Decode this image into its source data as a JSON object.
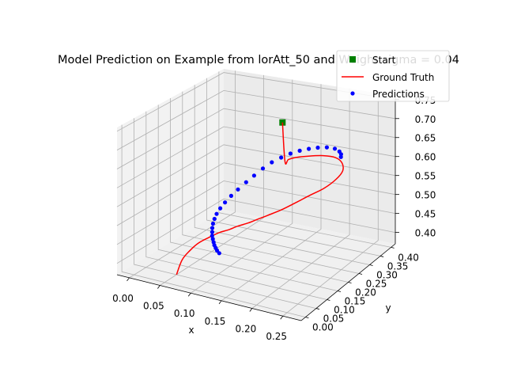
{
  "chart_data": {
    "type": "line3d-scatter",
    "title": "Model Prediction on Example from lorAtt_50 and Weight sigma = 0.04",
    "xlabel": "x",
    "ylabel": "y",
    "zlabel": "",
    "xlim": [
      -0.02,
      0.28
    ],
    "ylim": [
      -0.02,
      0.42
    ],
    "zlim": [
      0.37,
      0.76
    ],
    "xticks": [
      "0.00",
      "0.05",
      "0.10",
      "0.15",
      "0.20",
      "0.25"
    ],
    "yticks": [
      "0.00",
      "0.05",
      "0.10",
      "0.15",
      "0.20",
      "0.25",
      "0.30",
      "0.35",
      "0.40"
    ],
    "zticks": [
      "0.40",
      "0.45",
      "0.50",
      "0.55",
      "0.60",
      "0.65",
      "0.70",
      "0.75"
    ],
    "grid": true,
    "legend_position": "top-right",
    "legend": [
      {
        "label": "Start",
        "marker": "square",
        "color": "#008000"
      },
      {
        "label": "Ground Truth",
        "marker": "line",
        "color": "#ff0000"
      },
      {
        "label": "Predictions",
        "marker": "dot",
        "color": "#0000ff"
      }
    ],
    "series": [
      {
        "name": "Start",
        "color": "#008000",
        "points": [
          {
            "x": 0.15,
            "y": 0.25,
            "z": 0.72
          }
        ]
      },
      {
        "name": "Ground Truth",
        "color": "#ff0000",
        "points": [
          {
            "x": 0.05,
            "y": 0.05,
            "z": 0.37
          },
          {
            "x": 0.055,
            "y": 0.061,
            "z": 0.406
          },
          {
            "x": 0.065,
            "y": 0.069,
            "z": 0.431
          },
          {
            "x": 0.076,
            "y": 0.076,
            "z": 0.451
          },
          {
            "x": 0.091,
            "y": 0.084,
            "z": 0.468
          },
          {
            "x": 0.104,
            "y": 0.093,
            "z": 0.481
          },
          {
            "x": 0.118,
            "y": 0.098,
            "z": 0.491
          },
          {
            "x": 0.13,
            "y": 0.106,
            "z": 0.501
          },
          {
            "x": 0.144,
            "y": 0.115,
            "z": 0.51
          },
          {
            "x": 0.156,
            "y": 0.122,
            "z": 0.52
          },
          {
            "x": 0.171,
            "y": 0.13,
            "z": 0.532
          },
          {
            "x": 0.19,
            "y": 0.139,
            "z": 0.548
          },
          {
            "x": 0.21,
            "y": 0.148,
            "z": 0.568
          },
          {
            "x": 0.23,
            "y": 0.161,
            "z": 0.588
          },
          {
            "x": 0.249,
            "y": 0.173,
            "z": 0.606
          },
          {
            "x": 0.263,
            "y": 0.19,
            "z": 0.626
          },
          {
            "x": 0.267,
            "y": 0.21,
            "z": 0.641
          },
          {
            "x": 0.258,
            "y": 0.231,
            "z": 0.651
          },
          {
            "x": 0.24,
            "y": 0.249,
            "z": 0.653
          },
          {
            "x": 0.216,
            "y": 0.258,
            "z": 0.648
          },
          {
            "x": 0.191,
            "y": 0.259,
            "z": 0.64
          },
          {
            "x": 0.17,
            "y": 0.255,
            "z": 0.632
          },
          {
            "x": 0.16,
            "y": 0.25,
            "z": 0.626
          },
          {
            "x": 0.155,
            "y": 0.248,
            "z": 0.62
          },
          {
            "x": 0.15,
            "y": 0.25,
            "z": 0.72
          }
        ]
      },
      {
        "name": "Predictions",
        "color": "#0000ff",
        "points": [
          {
            "x": 0.109,
            "y": 0.08,
            "z": 0.435
          },
          {
            "x": 0.105,
            "y": 0.081,
            "z": 0.44
          },
          {
            "x": 0.102,
            "y": 0.083,
            "z": 0.445
          },
          {
            "x": 0.099,
            "y": 0.085,
            "z": 0.45
          },
          {
            "x": 0.097,
            "y": 0.087,
            "z": 0.456
          },
          {
            "x": 0.095,
            "y": 0.089,
            "z": 0.463
          },
          {
            "x": 0.093,
            "y": 0.091,
            "z": 0.47
          },
          {
            "x": 0.092,
            "y": 0.094,
            "z": 0.478
          },
          {
            "x": 0.091,
            "y": 0.097,
            "z": 0.487
          },
          {
            "x": 0.091,
            "y": 0.1,
            "z": 0.497
          },
          {
            "x": 0.092,
            "y": 0.104,
            "z": 0.508
          },
          {
            "x": 0.094,
            "y": 0.108,
            "z": 0.52
          },
          {
            "x": 0.098,
            "y": 0.113,
            "z": 0.534
          },
          {
            "x": 0.104,
            "y": 0.118,
            "z": 0.549
          },
          {
            "x": 0.112,
            "y": 0.124,
            "z": 0.566
          },
          {
            "x": 0.121,
            "y": 0.13,
            "z": 0.583
          },
          {
            "x": 0.132,
            "y": 0.137,
            "z": 0.602
          },
          {
            "x": 0.143,
            "y": 0.143,
            "z": 0.62
          },
          {
            "x": 0.155,
            "y": 0.15,
            "z": 0.639
          },
          {
            "x": 0.167,
            "y": 0.158,
            "z": 0.655
          },
          {
            "x": 0.18,
            "y": 0.165,
            "z": 0.668
          },
          {
            "x": 0.193,
            "y": 0.172,
            "z": 0.679
          },
          {
            "x": 0.206,
            "y": 0.179,
            "z": 0.687
          },
          {
            "x": 0.219,
            "y": 0.185,
            "z": 0.693
          },
          {
            "x": 0.232,
            "y": 0.191,
            "z": 0.697
          },
          {
            "x": 0.245,
            "y": 0.197,
            "z": 0.699
          },
          {
            "x": 0.257,
            "y": 0.201,
            "z": 0.697
          },
          {
            "x": 0.264,
            "y": 0.203,
            "z": 0.691
          },
          {
            "x": 0.266,
            "y": 0.205,
            "z": 0.684
          },
          {
            "x": 0.265,
            "y": 0.207,
            "z": 0.676
          }
        ]
      }
    ]
  }
}
